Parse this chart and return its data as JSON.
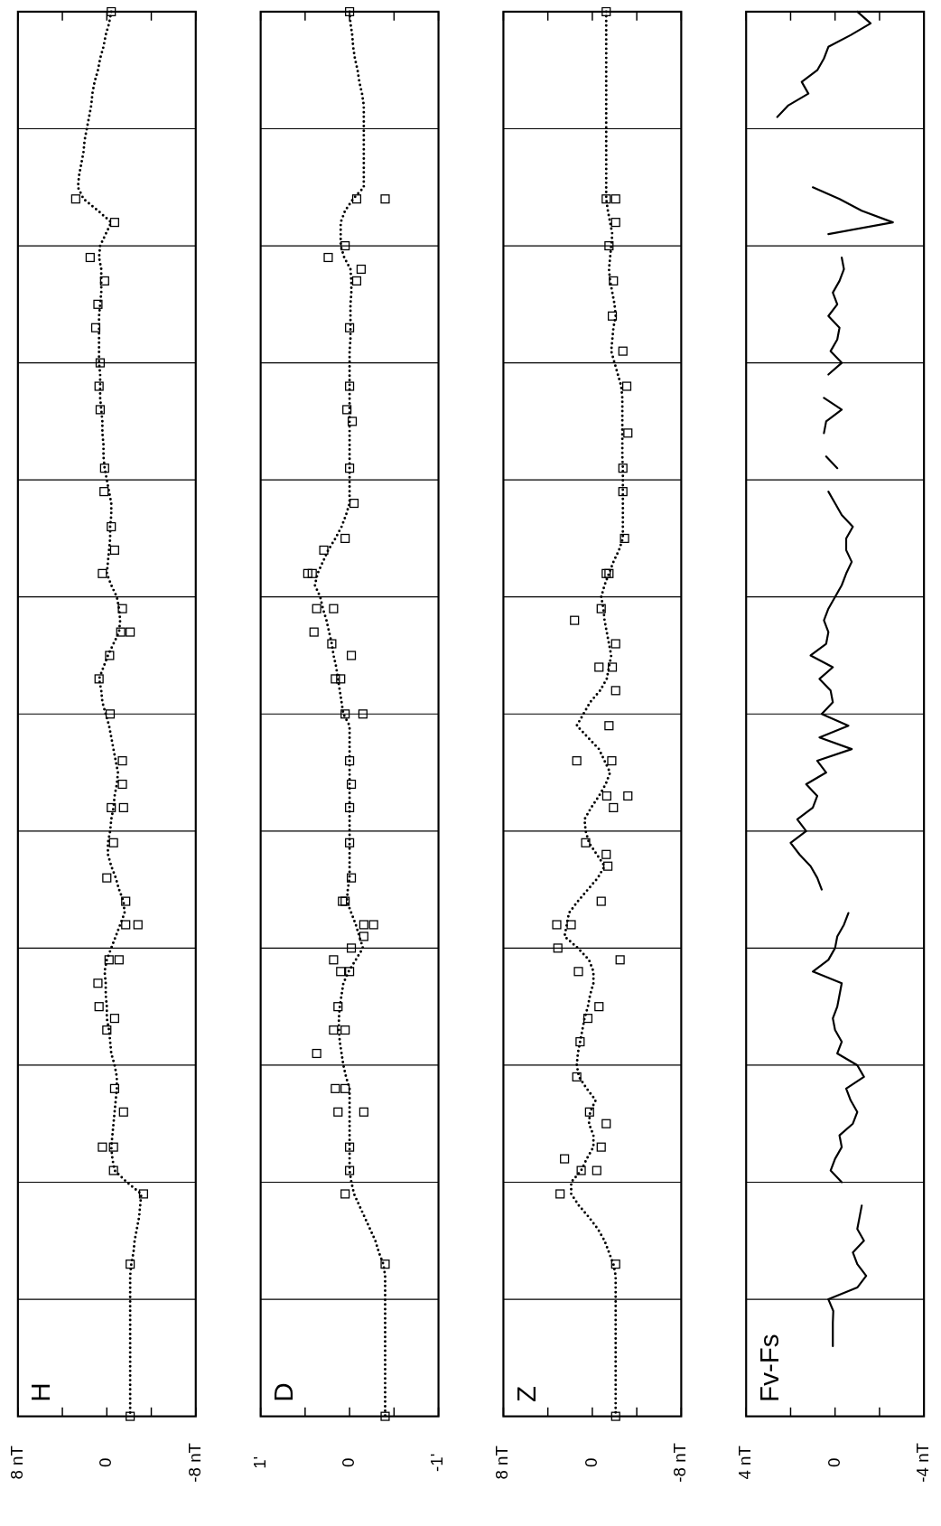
{
  "chart_data": [
    {
      "type": "line",
      "orientation": "horizontal",
      "title": "H",
      "categories": [
        null,
        null,
        null,
        null,
        null,
        null,
        null,
        null,
        null,
        null,
        null,
        null,
        null,
        null,
        null,
        null,
        null,
        null,
        null,
        null,
        null,
        null,
        null,
        null,
        null,
        null,
        null,
        null,
        null,
        null,
        null,
        null,
        null,
        null,
        null,
        null,
        null,
        null,
        null,
        null,
        null,
        null,
        null,
        null,
        null,
        null,
        null,
        null,
        null,
        null,
        null,
        null,
        null,
        null,
        null,
        null,
        null,
        null,
        null,
        null,
        null,
        null,
        null,
        null,
        null,
        null,
        null,
        null,
        null,
        null,
        null,
        null,
        null,
        null,
        null,
        null,
        null,
        null,
        null,
        null,
        null,
        null,
        null,
        null,
        null,
        null,
        null,
        null,
        null,
        null,
        null,
        null,
        null,
        null,
        null,
        null,
        null,
        null,
        null,
        null,
        null,
        null,
        null,
        null,
        null,
        null,
        null,
        null,
        null,
        null,
        null,
        null,
        null,
        null,
        null,
        null,
        null,
        null,
        null,
        null,
        null
      ],
      "xlim": [
        8,
        -8
      ],
      "xticks": [
        {
          "value": 8,
          "label": "8 nT"
        },
        {
          "value": 4,
          "label": null
        },
        {
          "value": 0,
          "label": "0"
        },
        {
          "value": -4,
          "label": null
        },
        {
          "value": -8,
          "label": "-8 nT"
        }
      ],
      "grid": "y",
      "tick_labels": "x",
      "series": [
        {
          "type": "line",
          "line_style": "dotted",
          "color": "#000000",
          "values": [
            -0.4,
            -0.2,
            0.1,
            0.3,
            0.6,
            0.8,
            1.1,
            1.3,
            1.4,
            1.6,
            1.8,
            2.0,
            2.1,
            2.3,
            2.5,
            2.6,
            2.1,
            0.8,
            -0.4,
            0.1,
            0.6,
            0.7,
            0.5,
            0.5,
            0.5,
            0.6,
            0.7,
            0.7,
            0.7,
            0.7,
            0.7,
            0.6,
            0.6,
            0.6,
            0.5,
            0.4,
            0.4,
            0.3,
            0.3,
            0.2,
            0.0,
            -0.2,
            -0.4,
            -0.4,
            -0.3,
            -0.3,
            -0.2,
            -0.1,
            0.0,
            -0.4,
            -0.9,
            -1.1,
            -1.2,
            -1.1,
            -0.6,
            -0.1,
            0.3,
            0.7,
            0.5,
            0.4,
            0.1,
            -0.2,
            -0.4,
            -0.6,
            -0.8,
            -1.0,
            -0.9,
            -0.7,
            -0.6,
            -0.4,
            -0.3,
            -0.1,
            -0.1,
            -0.4,
            -0.8,
            -1.1,
            -1.5,
            -1.6,
            -1.2,
            -0.8,
            -0.4,
            0.0,
            0.2,
            0.1,
            0.1,
            0.0,
            0.0,
            -0.2,
            -0.3,
            -0.4,
            -0.7,
            -0.9,
            -0.9,
            -0.8,
            -0.7,
            -0.6,
            -0.5,
            -0.4,
            -0.5,
            -0.7,
            -1.8,
            -3.1,
            -3.0,
            -2.9,
            -2.7,
            -2.5,
            -2.4,
            -2.2,
            -2.1,
            -2.1,
            -2.1,
            -2.1,
            -2.1,
            -2.1,
            -2.1,
            -2.1,
            -2.1,
            -2.1,
            -2.1,
            -2.1,
            -2.1
          ]
        },
        {
          "type": "scatter",
          "marker": "square",
          "color": "#000000",
          "values": [
            -0.4,
            null,
            null,
            null,
            null,
            null,
            null,
            null,
            null,
            null,
            null,
            null,
            null,
            null,
            null,
            null,
            2.8,
            null,
            -0.7,
            null,
            null,
            1.5,
            null,
            0.2,
            null,
            0.8,
            null,
            1.0,
            null,
            null,
            0.6,
            null,
            0.7,
            null,
            0.6,
            null,
            null,
            null,
            null,
            0.2,
            null,
            0.25,
            null,
            null,
            -0.4,
            null,
            -0.7,
            null,
            0.4,
            null,
            null,
            -1.4,
            null,
            -2.1,
            null,
            -0.25,
            null,
            0.7,
            null,
            null,
            -0.3,
            null,
            null,
            null,
            -1.4,
            null,
            -1.4,
            null,
            -0.4,
            null,
            null,
            -0.6,
            null,
            null,
            0,
            null,
            -1.7,
            null,
            -2.8,
            null,
            null,
            -0.2,
            null,
            0.8,
            null,
            0.7,
            -0.7,
            0,
            null,
            null,
            null,
            null,
            -0.7,
            null,
            -1.5,
            null,
            null,
            0.4,
            null,
            -0.6,
            null,
            -3.3,
            null,
            null,
            null,
            null,
            null,
            -2.1,
            null,
            null,
            null,
            null,
            null,
            null,
            null,
            null,
            null,
            null,
            null,
            null,
            -2.1
          ]
        },
        {
          "type": "scatter",
          "marker": "square",
          "color": "#000000",
          "values": [
            null,
            null,
            null,
            null,
            null,
            null,
            null,
            null,
            null,
            null,
            null,
            null,
            null,
            null,
            null,
            null,
            null,
            null,
            null,
            null,
            null,
            null,
            null,
            null,
            null,
            null,
            null,
            null,
            null,
            null,
            null,
            null,
            null,
            null,
            null,
            null,
            null,
            null,
            null,
            null,
            null,
            null,
            null,
            null,
            null,
            null,
            null,
            null,
            null,
            null,
            null,
            null,
            null,
            -1.25,
            null,
            null,
            null,
            null,
            null,
            null,
            null,
            null,
            null,
            null,
            null,
            null,
            null,
            null,
            -1.5,
            null,
            null,
            null,
            null,
            null,
            null,
            null,
            null,
            null,
            -1.7,
            null,
            null,
            -1.1,
            null,
            null,
            null,
            null,
            null,
            null,
            null,
            null,
            null,
            null,
            null,
            null,
            null,
            null,
            null,
            -0.6,
            null,
            null,
            null,
            null,
            null,
            null,
            null,
            null,
            null,
            null,
            null,
            null,
            null,
            null,
            null,
            null,
            null,
            null,
            null,
            null,
            null,
            null,
            null
          ]
        }
      ]
    },
    {
      "type": "line",
      "orientation": "horizontal",
      "title": "D",
      "categories": [
        null,
        null,
        null,
        null,
        null,
        null,
        null,
        null,
        null,
        null,
        null,
        null,
        null,
        null,
        null,
        null,
        null,
        null,
        null,
        null,
        null,
        null,
        null,
        null,
        null,
        null,
        null,
        null,
        null,
        null,
        null,
        null,
        null,
        null,
        null,
        null,
        null,
        null,
        null,
        null,
        null,
        null,
        null,
        null,
        null,
        null,
        null,
        null,
        null,
        null,
        null,
        null,
        null,
        null,
        null,
        null,
        null,
        null,
        null,
        null,
        null,
        null,
        null,
        null,
        null,
        null,
        null,
        null,
        null,
        null,
        null,
        null,
        null,
        null,
        null,
        null,
        null,
        null,
        null,
        null,
        null,
        null,
        null,
        null,
        null,
        null,
        null,
        null,
        null,
        null,
        null,
        null,
        null,
        null,
        null,
        null,
        null,
        null,
        null,
        null,
        null,
        null,
        null,
        null,
        null,
        null,
        null,
        null,
        null,
        null,
        null,
        null,
        null,
        null,
        null,
        null,
        null,
        null,
        null,
        null,
        null
      ],
      "xlim": [
        1,
        -1
      ],
      "xticks": [
        {
          "value": 1,
          "label": "1'"
        },
        {
          "value": 0.5,
          "label": null
        },
        {
          "value": 0,
          "label": "0"
        },
        {
          "value": -0.5,
          "label": null
        },
        {
          "value": -1,
          "label": "-1'"
        }
      ],
      "grid": "y",
      "tick_labels": "x",
      "series": [
        {
          "type": "line",
          "line_style": "dotted",
          "color": "#000000",
          "values": [
            0,
            -0.01,
            -0.03,
            -0.04,
            -0.06,
            -0.09,
            -0.11,
            -0.14,
            -0.16,
            -0.16,
            -0.16,
            -0.16,
            -0.16,
            -0.16,
            -0.16,
            -0.16,
            -0.04,
            0.05,
            0.1,
            0.1,
            0.1,
            0.06,
            -0.01,
            -0.02,
            -0.02,
            -0.01,
            -0.01,
            -0.01,
            -0.01,
            0,
            0,
            0,
            0,
            0,
            0,
            0,
            0,
            0,
            0,
            0,
            0,
            0,
            0,
            0.04,
            0.09,
            0.16,
            0.24,
            0.3,
            0.36,
            0.39,
            0.33,
            0.3,
            0.26,
            0.23,
            0.2,
            0.18,
            0.15,
            0.13,
            0.11,
            0.09,
            0.07,
            0,
            0,
            0,
            0,
            0,
            0,
            0,
            0,
            0,
            0,
            0,
            0,
            0,
            0,
            0.02,
            0.03,
            -0.02,
            -0.07,
            -0.11,
            -0.15,
            -0.07,
            0.01,
            0.07,
            0.09,
            0.11,
            0.12,
            0.12,
            0.11,
            0.09,
            0.07,
            0.04,
            0,
            0,
            0,
            0,
            0,
            0,
            0,
            0,
            -0.02,
            -0.05,
            -0.11,
            -0.17,
            -0.23,
            -0.29,
            -0.33,
            -0.38,
            -0.4,
            -0.4,
            -0.4,
            -0.4,
            -0.4,
            -0.4,
            -0.4,
            -0.4,
            -0.4,
            -0.4,
            -0.4,
            -0.4,
            -0.4
          ]
        },
        {
          "type": "scatter",
          "marker": "square",
          "color": "#000000",
          "values": [
            0,
            null,
            null,
            null,
            null,
            null,
            null,
            null,
            null,
            null,
            null,
            null,
            null,
            null,
            null,
            null,
            -0.08,
            null,
            null,
            null,
            0.05,
            0.24,
            -0.13,
            -0.08,
            null,
            null,
            null,
            0,
            null,
            null,
            null,
            null,
            0,
            null,
            0.03,
            -0.03,
            null,
            null,
            null,
            0,
            null,
            null,
            -0.05,
            null,
            null,
            0.05,
            0.29,
            null,
            0.42,
            null,
            null,
            0.18,
            null,
            0.4,
            0.2,
            -0.02,
            null,
            0.16,
            null,
            null,
            0.05,
            null,
            null,
            null,
            0,
            null,
            -0.02,
            null,
            0,
            null,
            null,
            0,
            null,
            null,
            -0.02,
            null,
            0.05,
            null,
            -0.16,
            -0.16,
            -0.02,
            0.18,
            0.1,
            null,
            null,
            0.13,
            null,
            0.18,
            null,
            0.37,
            null,
            null,
            0.05,
            null,
            -0.16,
            null,
            null,
            0,
            null,
            0,
            null,
            0.05,
            null,
            null,
            null,
            null,
            null,
            -0.4,
            null,
            null,
            null,
            null,
            null,
            null,
            null,
            null,
            null,
            null,
            null,
            null,
            -0.4
          ]
        },
        {
          "type": "scatter",
          "marker": "square",
          "color": "#000000",
          "values": [
            null,
            null,
            null,
            null,
            null,
            null,
            null,
            null,
            null,
            null,
            null,
            null,
            null,
            null,
            null,
            null,
            -0.4,
            null,
            null,
            null,
            null,
            null,
            null,
            null,
            null,
            null,
            null,
            null,
            null,
            null,
            null,
            null,
            null,
            null,
            null,
            null,
            null,
            null,
            null,
            null,
            null,
            null,
            null,
            null,
            null,
            null,
            null,
            null,
            0.47,
            null,
            null,
            0.37,
            null,
            null,
            null,
            null,
            null,
            0.1,
            null,
            null,
            -0.15,
            null,
            null,
            null,
            null,
            null,
            null,
            null,
            null,
            null,
            null,
            null,
            null,
            null,
            null,
            null,
            0.08,
            null,
            -0.27,
            null,
            null,
            null,
            0,
            null,
            null,
            null,
            null,
            0.05,
            null,
            null,
            null,
            null,
            0.16,
            null,
            0.13,
            null,
            null,
            null,
            null,
            null,
            null,
            null,
            null,
            null,
            null,
            null,
            null,
            null,
            null,
            null,
            null,
            null,
            null,
            null,
            null,
            null,
            null,
            null,
            null,
            null,
            null
          ]
        }
      ]
    },
    {
      "type": "line",
      "orientation": "horizontal",
      "title": "Z",
      "categories": [
        null,
        null,
        null,
        null,
        null,
        null,
        null,
        null,
        null,
        null,
        null,
        null,
        null,
        null,
        null,
        null,
        null,
        null,
        null,
        null,
        null,
        null,
        null,
        null,
        null,
        null,
        null,
        null,
        null,
        null,
        null,
        null,
        null,
        null,
        null,
        null,
        null,
        null,
        null,
        null,
        null,
        null,
        null,
        null,
        null,
        null,
        null,
        null,
        null,
        null,
        null,
        null,
        null,
        null,
        null,
        null,
        null,
        null,
        null,
        null,
        null,
        null,
        null,
        null,
        null,
        null,
        null,
        null,
        null,
        null,
        null,
        null,
        null,
        null,
        null,
        null,
        null,
        null,
        null,
        null,
        null,
        null,
        null,
        null,
        null,
        null,
        null,
        null,
        null,
        null,
        null,
        null,
        null,
        null,
        null,
        null,
        null,
        null,
        null,
        null,
        null,
        null,
        null,
        null,
        null,
        null,
        null,
        null,
        null,
        null,
        null,
        null,
        null,
        null,
        null,
        null,
        null,
        null,
        null,
        null,
        null
      ],
      "xlim": [
        8,
        -8
      ],
      "xticks": [
        {
          "value": 8,
          "label": "8 nT"
        },
        {
          "value": 4,
          "label": null
        },
        {
          "value": 0,
          "label": "0"
        },
        {
          "value": -4,
          "label": null
        },
        {
          "value": -8,
          "label": "-8 nT"
        }
      ],
      "grid": "y",
      "tick_labels": "x",
      "series": [
        {
          "type": "line",
          "line_style": "dotted",
          "color": "#000000",
          "values": [
            -1.25,
            -1.25,
            -1.25,
            -1.25,
            -1.25,
            -1.25,
            -1.25,
            -1.25,
            -1.25,
            -1.25,
            -1.25,
            -1.25,
            -1.25,
            -1.25,
            -1.25,
            -1.25,
            -1.25,
            -1.4,
            -1.6,
            -1.8,
            -1.7,
            -1.6,
            -1.5,
            -1.6,
            -1.8,
            -2.0,
            -2.1,
            -1.9,
            -1.8,
            -1.7,
            -2.0,
            -2.3,
            -2.6,
            -2.7,
            -2.7,
            -2.7,
            -2.7,
            -2.7,
            -2.7,
            -2.75,
            -2.75,
            -2.75,
            -2.75,
            -2.75,
            -2.75,
            -2.75,
            -2.4,
            -1.9,
            -1.5,
            -1.1,
            -0.8,
            -1.0,
            -1.1,
            -1.3,
            -1.5,
            -1.7,
            -1.5,
            -1.3,
            -0.7,
            0.2,
            0.8,
            1.4,
            0.4,
            -0.6,
            -1.1,
            -1.6,
            -1.2,
            -0.6,
            0.1,
            0.7,
            0.6,
            0.3,
            -0.4,
            -1.1,
            -0.5,
            0.4,
            1.3,
            2.1,
            2.3,
            2.5,
            1.3,
            0.3,
            -0.1,
            -0.1,
            0.2,
            0.4,
            0.7,
            0.9,
            1.1,
            1.3,
            1.4,
            1.2,
            0.5,
            -0.3,
            0.2,
            0.3,
            -0.1,
            -0.1,
            0.5,
            1.0,
            1.9,
            1.9,
            1.2,
            0.3,
            -0.5,
            -1.1,
            -1.5,
            -1.9,
            -2.1,
            -2.1,
            -2.1,
            -2.1,
            -2.1,
            -2.1,
            -2.1,
            -2.1,
            -2.1,
            -2.1,
            -2.1,
            -2.1,
            -2.1
          ]
        },
        {
          "type": "scatter",
          "marker": "square",
          "color": "#000000",
          "values": [
            -1.25,
            null,
            null,
            null,
            null,
            null,
            null,
            null,
            null,
            null,
            null,
            null,
            null,
            null,
            null,
            null,
            -2.1,
            null,
            -2.1,
            null,
            -1.5,
            null,
            null,
            -1.9,
            null,
            null,
            -1.8,
            null,
            null,
            -2.75,
            null,
            null,
            -3.1,
            null,
            null,
            null,
            -3.2,
            null,
            null,
            -2.75,
            null,
            -2.75,
            null,
            null,
            null,
            -2.9,
            null,
            null,
            -1.25,
            null,
            null,
            -0.8,
            1.6,
            null,
            -2.1,
            null,
            -0.6,
            null,
            -2.1,
            null,
            null,
            -1.5,
            null,
            null,
            -1.75,
            null,
            null,
            -3.2,
            -1.9,
            null,
            null,
            0.6,
            -1.25,
            -1.4,
            null,
            null,
            -0.8,
            null,
            3.2,
            null,
            3.1,
            -2.5,
            1.25,
            null,
            null,
            -0.6,
            0.4,
            null,
            1.1,
            null,
            null,
            1.4,
            null,
            null,
            0.25,
            -1.25,
            null,
            -0.8,
            2.5,
            1.0,
            null,
            2.9,
            null,
            null,
            null,
            null,
            null,
            -2.1,
            null,
            null,
            null,
            null,
            null,
            null,
            null,
            null,
            null,
            null,
            null,
            null,
            -2.1
          ]
        },
        {
          "type": "scatter",
          "marker": "square",
          "color": "#000000",
          "values": [
            null,
            null,
            null,
            null,
            null,
            null,
            null,
            null,
            null,
            null,
            null,
            null,
            null,
            null,
            null,
            null,
            -1.25,
            null,
            null,
            null,
            null,
            null,
            null,
            null,
            null,
            null,
            null,
            null,
            null,
            null,
            null,
            null,
            null,
            null,
            null,
            null,
            null,
            null,
            null,
            null,
            null,
            null,
            null,
            null,
            null,
            null,
            null,
            null,
            -1.5,
            null,
            null,
            null,
            null,
            null,
            null,
            null,
            -1.8,
            null,
            null,
            null,
            null,
            null,
            null,
            null,
            1.4,
            null,
            null,
            -1.3,
            null,
            null,
            null,
            null,
            null,
            null,
            null,
            null,
            null,
            null,
            1.9,
            null,
            null,
            null,
            null,
            null,
            null,
            null,
            null,
            null,
            null,
            null,
            null,
            null,
            null,
            null,
            null,
            null,
            null,
            null,
            null,
            -0.4,
            null,
            null,
            null,
            null,
            null,
            null,
            null,
            null,
            null,
            null,
            null,
            null,
            null,
            null,
            null,
            null,
            null,
            null,
            null,
            null,
            null
          ]
        }
      ]
    },
    {
      "type": "line",
      "orientation": "horizontal",
      "title": "Fv-Fs",
      "categories": [
        null,
        null,
        null,
        null,
        null,
        null,
        null,
        null,
        null,
        null,
        null,
        null,
        null,
        null,
        null,
        null,
        null,
        null,
        null,
        null,
        null,
        null,
        null,
        null,
        null,
        null,
        null,
        null,
        null,
        null,
        null,
        null,
        null,
        null,
        null,
        null,
        null,
        null,
        null,
        null,
        null,
        null,
        null,
        null,
        null,
        null,
        null,
        null,
        null,
        null,
        null,
        null,
        null,
        null,
        null,
        null,
        null,
        null,
        null,
        null,
        null,
        null,
        null,
        null,
        null,
        null,
        null,
        null,
        null,
        null,
        null,
        null,
        null,
        null,
        null,
        null,
        null,
        null,
        null,
        null,
        null,
        null,
        null,
        null,
        null,
        null,
        null,
        null,
        null,
        null,
        null,
        null,
        null,
        null,
        null,
        null,
        null,
        null,
        null,
        null,
        null,
        null,
        null,
        null,
        null,
        null,
        null,
        null,
        null,
        null,
        null,
        null,
        null,
        null,
        null,
        null,
        null,
        null,
        null,
        null,
        null
      ],
      "xlim": [
        4,
        -4
      ],
      "xticks": [
        {
          "value": 4,
          "label": "4 nT"
        },
        {
          "value": 2,
          "label": null
        },
        {
          "value": 0,
          "label": "0"
        },
        {
          "value": -2,
          "label": null
        },
        {
          "value": -4,
          "label": "-4 nT"
        }
      ],
      "grid": "y",
      "tick_labels": "x",
      "series": [
        {
          "type": "line",
          "line_style": "solid",
          "color": "#000000",
          "values": [
            -1.0,
            -1.6,
            -0.7,
            0.3,
            0.5,
            0.8,
            1.5,
            1.2,
            2.1,
            2.6,
            null,
            null,
            null,
            null,
            null,
            1.0,
            -0.2,
            -1.2,
            -2.6,
            0.3,
            null,
            -0.3,
            -0.4,
            -0.2,
            0.1,
            -0.1,
            0.3,
            -0.2,
            -0.1,
            0.2,
            -0.3,
            0.3,
            null,
            0.5,
            -0.3,
            0.4,
            0.5,
            null,
            0.4,
            -0.1,
            null,
            0.3,
            0.0,
            -0.3,
            -0.8,
            -0.5,
            -0.5,
            -0.75,
            -0.5,
            -0.3,
            0.0,
            0.3,
            0.5,
            0.3,
            0.4,
            1.1,
            0.1,
            0.7,
            0.2,
            0.1,
            0.6,
            -0.6,
            0.7,
            -0.75,
            0.8,
            0.4,
            1.3,
            0.8,
            1.0,
            1.7,
            1.3,
            2.0,
            1.6,
            1.1,
            0.8,
            0.6,
            null,
            -0.6,
            -0.4,
            -0.1,
            0.0,
            0.3,
            1.0,
            -0.3,
            -0.2,
            -0.1,
            0.1,
            0.0,
            -0.3,
            -0.1,
            -1.0,
            -1.3,
            -0.5,
            -0.7,
            -1.0,
            -0.8,
            -0.2,
            -0.3,
            0.0,
            0.2,
            -0.3,
            null,
            -1.2,
            -1.1,
            -1.0,
            -1.3,
            -0.8,
            -1.0,
            -1.4,
            -1.0,
            0.3,
            0.08,
            0.1,
            0.1,
            0.1,
            null,
            null,
            null,
            null,
            null,
            null
          ]
        }
      ]
    }
  ]
}
